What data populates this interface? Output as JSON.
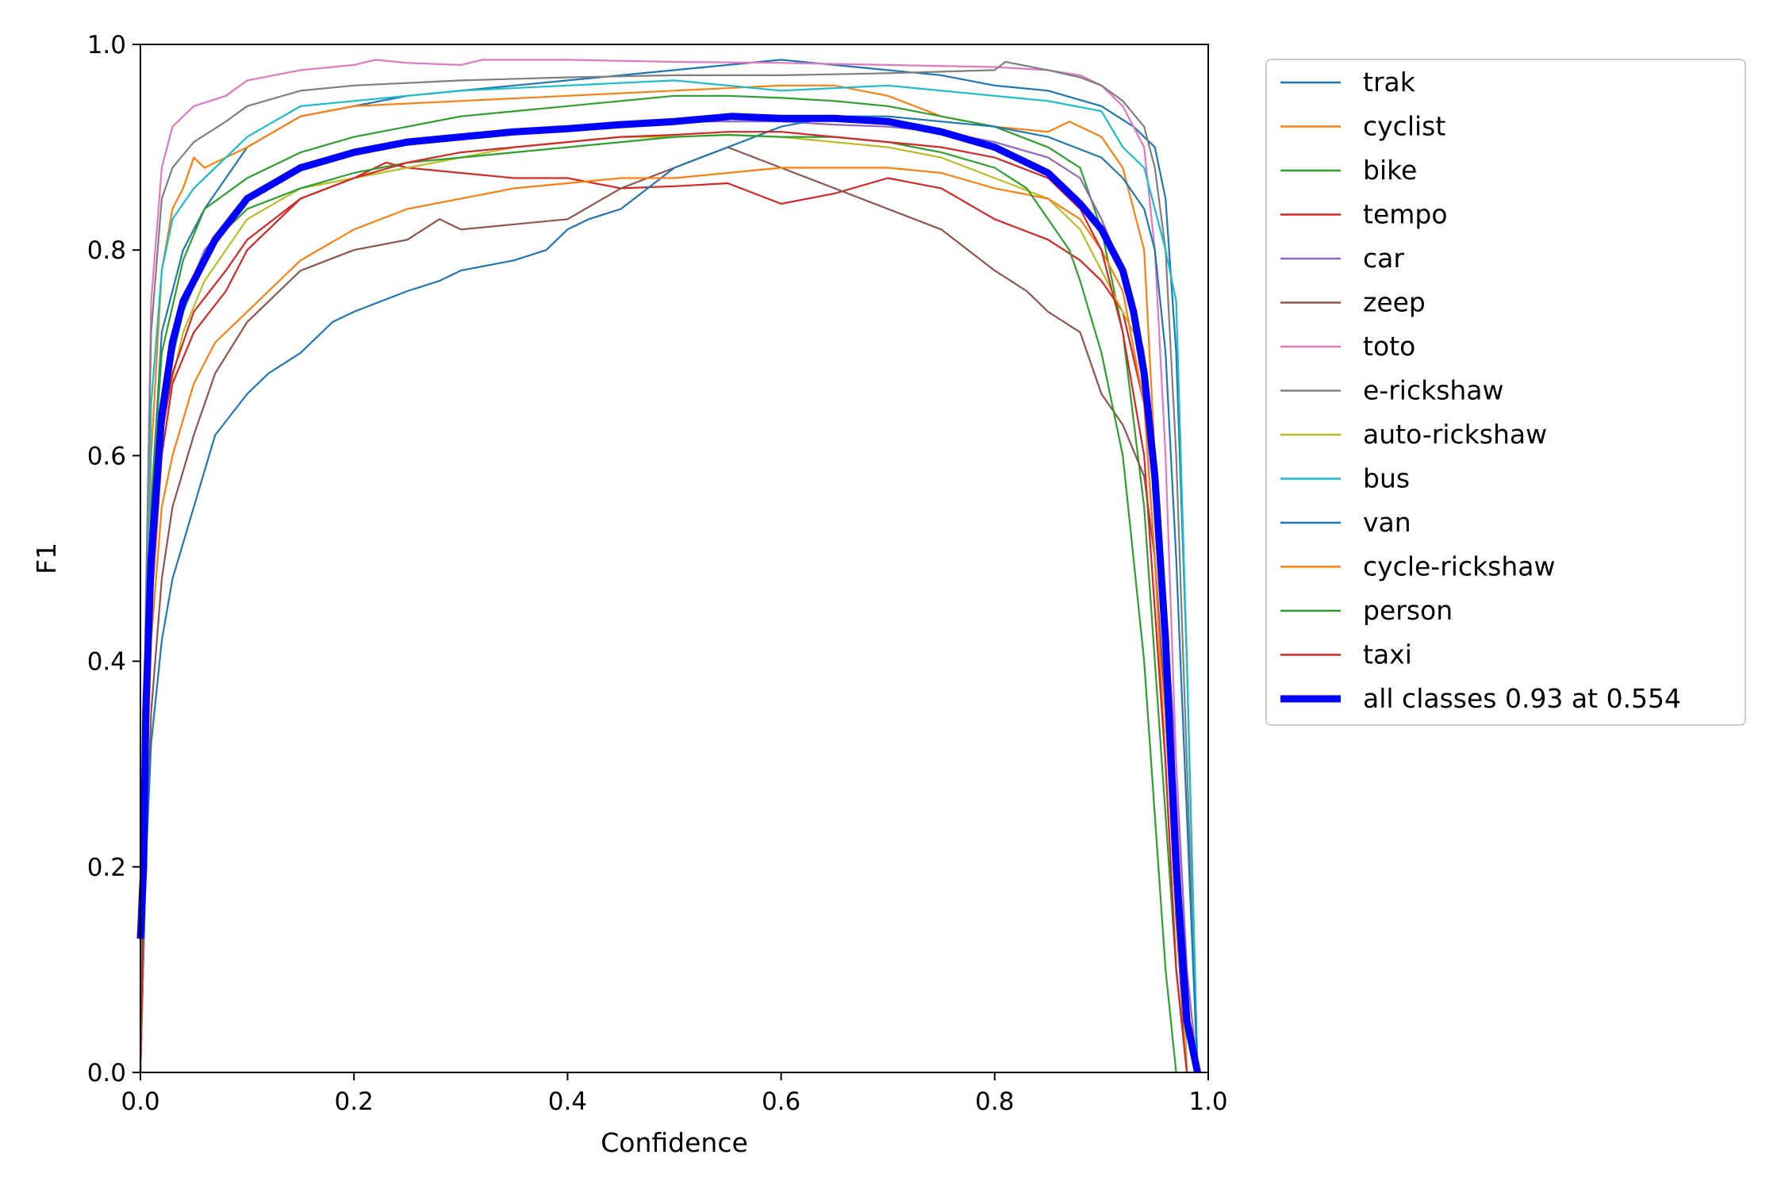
{
  "chart_data": {
    "type": "line",
    "title": "",
    "xlabel": "Confidence",
    "ylabel": "F1",
    "xlim": [
      0.0,
      1.0
    ],
    "ylim": [
      0.0,
      1.0
    ],
    "xticks": [
      "0.0",
      "0.2",
      "0.4",
      "0.6",
      "0.8",
      "1.0"
    ],
    "yticks": [
      "0.0",
      "0.2",
      "0.4",
      "0.6",
      "0.8",
      "1.0"
    ],
    "grid": false,
    "legend_position": "outside-right-top",
    "series": [
      {
        "name": "trak",
        "color": "#1f77b4",
        "width": "thin",
        "x": [
          0.0,
          0.005,
          0.01,
          0.02,
          0.04,
          0.06,
          0.08,
          0.1,
          0.15,
          0.2,
          0.25,
          0.3,
          0.35,
          0.4,
          0.45,
          0.5,
          0.55,
          0.6,
          0.65,
          0.7,
          0.75,
          0.8,
          0.85,
          0.9,
          0.93,
          0.95,
          0.96,
          0.97,
          0.98,
          0.99
        ],
        "y": [
          0.0,
          0.3,
          0.55,
          0.72,
          0.8,
          0.84,
          0.87,
          0.9,
          0.93,
          0.94,
          0.95,
          0.955,
          0.96,
          0.965,
          0.97,
          0.975,
          0.98,
          0.985,
          0.98,
          0.975,
          0.97,
          0.96,
          0.955,
          0.94,
          0.92,
          0.9,
          0.85,
          0.7,
          0.4,
          0.0
        ]
      },
      {
        "name": "cyclist",
        "color": "#ff7f0e",
        "width": "thin",
        "x": [
          0.0,
          0.005,
          0.01,
          0.02,
          0.03,
          0.04,
          0.05,
          0.06,
          0.1,
          0.15,
          0.2,
          0.3,
          0.4,
          0.5,
          0.6,
          0.65,
          0.7,
          0.75,
          0.8,
          0.85,
          0.87,
          0.9,
          0.92,
          0.94,
          0.95,
          0.96,
          0.97,
          0.98
        ],
        "y": [
          0.0,
          0.35,
          0.6,
          0.78,
          0.84,
          0.86,
          0.89,
          0.88,
          0.9,
          0.93,
          0.94,
          0.945,
          0.95,
          0.955,
          0.96,
          0.96,
          0.95,
          0.93,
          0.92,
          0.915,
          0.925,
          0.91,
          0.88,
          0.8,
          0.6,
          0.4,
          0.15,
          0.0
        ]
      },
      {
        "name": "bike",
        "color": "#2ca02c",
        "width": "thin",
        "x": [
          0.0,
          0.005,
          0.01,
          0.02,
          0.04,
          0.06,
          0.1,
          0.15,
          0.2,
          0.25,
          0.3,
          0.4,
          0.45,
          0.5,
          0.55,
          0.6,
          0.65,
          0.7,
          0.75,
          0.8,
          0.85,
          0.88,
          0.9,
          0.92,
          0.94,
          0.95,
          0.96,
          0.97,
          0.98
        ],
        "y": [
          0.0,
          0.3,
          0.55,
          0.7,
          0.79,
          0.84,
          0.87,
          0.895,
          0.91,
          0.92,
          0.93,
          0.94,
          0.945,
          0.95,
          0.95,
          0.948,
          0.945,
          0.94,
          0.93,
          0.92,
          0.9,
          0.88,
          0.82,
          0.72,
          0.55,
          0.4,
          0.25,
          0.1,
          0.0
        ]
      },
      {
        "name": "tempo",
        "color": "#d62728",
        "width": "thin",
        "x": [
          0.0,
          0.005,
          0.01,
          0.02,
          0.03,
          0.05,
          0.08,
          0.1,
          0.12,
          0.15,
          0.2,
          0.23,
          0.25,
          0.3,
          0.35,
          0.4,
          0.45,
          0.5,
          0.55,
          0.6,
          0.65,
          0.7,
          0.75,
          0.8,
          0.85,
          0.88,
          0.9,
          0.92,
          0.94,
          0.95,
          0.96,
          0.97,
          0.98
        ],
        "y": [
          0.0,
          0.25,
          0.45,
          0.6,
          0.67,
          0.72,
          0.76,
          0.8,
          0.82,
          0.85,
          0.87,
          0.885,
          0.88,
          0.875,
          0.87,
          0.87,
          0.86,
          0.862,
          0.865,
          0.845,
          0.855,
          0.87,
          0.86,
          0.83,
          0.81,
          0.79,
          0.77,
          0.74,
          0.65,
          0.5,
          0.35,
          0.15,
          0.0
        ]
      },
      {
        "name": "car",
        "color": "#9467bd",
        "width": "thin",
        "x": [
          0.0,
          0.005,
          0.01,
          0.02,
          0.04,
          0.06,
          0.1,
          0.15,
          0.2,
          0.25,
          0.3,
          0.35,
          0.4,
          0.45,
          0.5,
          0.55,
          0.6,
          0.65,
          0.7,
          0.75,
          0.8,
          0.85,
          0.88,
          0.9,
          0.92,
          0.94,
          0.95,
          0.96,
          0.97,
          0.98,
          0.99
        ],
        "y": [
          0.0,
          0.3,
          0.5,
          0.65,
          0.75,
          0.8,
          0.85,
          0.88,
          0.895,
          0.905,
          0.91,
          0.915,
          0.92,
          0.922,
          0.925,
          0.925,
          0.925,
          0.922,
          0.92,
          0.915,
          0.905,
          0.89,
          0.87,
          0.83,
          0.78,
          0.7,
          0.6,
          0.45,
          0.3,
          0.1,
          0.0
        ]
      },
      {
        "name": "zeep",
        "color": "#8c564b",
        "width": "thin",
        "x": [
          0.0,
          0.005,
          0.01,
          0.02,
          0.03,
          0.05,
          0.07,
          0.1,
          0.13,
          0.15,
          0.2,
          0.25,
          0.28,
          0.3,
          0.35,
          0.4,
          0.45,
          0.5,
          0.55,
          0.6,
          0.65,
          0.7,
          0.75,
          0.8,
          0.83,
          0.85,
          0.88,
          0.9,
          0.92,
          0.94,
          0.95,
          0.96,
          0.97,
          0.98
        ],
        "y": [
          0.0,
          0.2,
          0.35,
          0.48,
          0.55,
          0.62,
          0.68,
          0.73,
          0.76,
          0.78,
          0.8,
          0.81,
          0.83,
          0.82,
          0.825,
          0.83,
          0.86,
          0.88,
          0.9,
          0.88,
          0.86,
          0.84,
          0.82,
          0.78,
          0.76,
          0.74,
          0.72,
          0.66,
          0.63,
          0.58,
          0.5,
          0.35,
          0.15,
          0.0
        ]
      },
      {
        "name": "toto",
        "color": "#e377c2",
        "width": "thin",
        "x": [
          0.0,
          0.005,
          0.01,
          0.02,
          0.03,
          0.05,
          0.08,
          0.1,
          0.15,
          0.2,
          0.22,
          0.25,
          0.3,
          0.32,
          0.4,
          0.5,
          0.6,
          0.7,
          0.8,
          0.85,
          0.88,
          0.9,
          0.92,
          0.94,
          0.95,
          0.96,
          0.97,
          0.98
        ],
        "y": [
          0.0,
          0.45,
          0.75,
          0.88,
          0.92,
          0.94,
          0.95,
          0.965,
          0.975,
          0.98,
          0.985,
          0.982,
          0.98,
          0.985,
          0.985,
          0.983,
          0.982,
          0.98,
          0.978,
          0.975,
          0.97,
          0.96,
          0.94,
          0.9,
          0.8,
          0.6,
          0.3,
          0.0
        ]
      },
      {
        "name": "e-rickshaw",
        "color": "#7f7f7f",
        "width": "thin",
        "x": [
          0.0,
          0.005,
          0.01,
          0.02,
          0.03,
          0.05,
          0.08,
          0.1,
          0.15,
          0.2,
          0.3,
          0.4,
          0.5,
          0.6,
          0.7,
          0.8,
          0.81,
          0.85,
          0.88,
          0.9,
          0.92,
          0.94,
          0.95,
          0.96,
          0.97,
          0.98,
          0.99
        ],
        "y": [
          0.0,
          0.45,
          0.72,
          0.85,
          0.88,
          0.905,
          0.925,
          0.94,
          0.955,
          0.96,
          0.965,
          0.968,
          0.97,
          0.97,
          0.972,
          0.975,
          0.983,
          0.975,
          0.968,
          0.96,
          0.945,
          0.92,
          0.88,
          0.8,
          0.6,
          0.3,
          0.0
        ]
      },
      {
        "name": "auto-rickshaw",
        "color": "#bcbd22",
        "width": "thin",
        "x": [
          0.0,
          0.005,
          0.01,
          0.02,
          0.04,
          0.06,
          0.08,
          0.1,
          0.15,
          0.2,
          0.25,
          0.3,
          0.35,
          0.4,
          0.45,
          0.5,
          0.55,
          0.6,
          0.65,
          0.7,
          0.75,
          0.8,
          0.85,
          0.88,
          0.9,
          0.92,
          0.94,
          0.95,
          0.96,
          0.97,
          0.98
        ],
        "y": [
          0.0,
          0.3,
          0.5,
          0.63,
          0.72,
          0.77,
          0.8,
          0.83,
          0.86,
          0.87,
          0.88,
          0.89,
          0.9,
          0.905,
          0.91,
          0.91,
          0.912,
          0.91,
          0.905,
          0.9,
          0.89,
          0.87,
          0.85,
          0.82,
          0.78,
          0.74,
          0.7,
          0.6,
          0.4,
          0.2,
          0.0
        ]
      },
      {
        "name": "bus",
        "color": "#17becf",
        "width": "thin",
        "x": [
          0.0,
          0.005,
          0.01,
          0.02,
          0.03,
          0.05,
          0.08,
          0.1,
          0.15,
          0.2,
          0.3,
          0.4,
          0.5,
          0.55,
          0.6,
          0.7,
          0.75,
          0.8,
          0.85,
          0.9,
          0.92,
          0.94,
          0.95,
          0.96,
          0.97,
          0.98,
          0.99
        ],
        "y": [
          0.0,
          0.4,
          0.65,
          0.78,
          0.83,
          0.86,
          0.89,
          0.91,
          0.94,
          0.945,
          0.955,
          0.96,
          0.965,
          0.96,
          0.955,
          0.96,
          0.955,
          0.95,
          0.945,
          0.935,
          0.9,
          0.88,
          0.84,
          0.8,
          0.75,
          0.4,
          0.0
        ]
      },
      {
        "name": "van",
        "color": "#1f77b4",
        "width": "thin",
        "x": [
          0.0,
          0.005,
          0.01,
          0.02,
          0.03,
          0.05,
          0.07,
          0.1,
          0.12,
          0.15,
          0.18,
          0.2,
          0.25,
          0.28,
          0.3,
          0.35,
          0.38,
          0.4,
          0.42,
          0.45,
          0.5,
          0.55,
          0.6,
          0.65,
          0.7,
          0.75,
          0.8,
          0.85,
          0.9,
          0.92,
          0.94,
          0.95,
          0.96,
          0.97,
          0.98,
          0.99
        ],
        "y": [
          0.0,
          0.2,
          0.32,
          0.42,
          0.48,
          0.55,
          0.62,
          0.66,
          0.68,
          0.7,
          0.73,
          0.74,
          0.76,
          0.77,
          0.78,
          0.79,
          0.8,
          0.82,
          0.83,
          0.84,
          0.88,
          0.9,
          0.92,
          0.93,
          0.93,
          0.925,
          0.92,
          0.91,
          0.89,
          0.87,
          0.84,
          0.8,
          0.7,
          0.5,
          0.25,
          0.0
        ]
      },
      {
        "name": "cycle-rickshaw",
        "color": "#ff7f0e",
        "width": "thin",
        "x": [
          0.0,
          0.005,
          0.01,
          0.02,
          0.03,
          0.05,
          0.07,
          0.1,
          0.12,
          0.15,
          0.2,
          0.25,
          0.3,
          0.35,
          0.4,
          0.45,
          0.5,
          0.55,
          0.6,
          0.65,
          0.7,
          0.75,
          0.8,
          0.85,
          0.88,
          0.9,
          0.92,
          0.94,
          0.95,
          0.96,
          0.97,
          0.98
        ],
        "y": [
          0.0,
          0.25,
          0.42,
          0.55,
          0.6,
          0.67,
          0.71,
          0.74,
          0.76,
          0.79,
          0.82,
          0.84,
          0.85,
          0.86,
          0.865,
          0.87,
          0.87,
          0.875,
          0.88,
          0.88,
          0.88,
          0.875,
          0.86,
          0.85,
          0.83,
          0.8,
          0.76,
          0.65,
          0.5,
          0.3,
          0.1,
          0.0
        ]
      },
      {
        "name": "person",
        "color": "#2ca02c",
        "width": "thin",
        "x": [
          0.0,
          0.005,
          0.01,
          0.02,
          0.04,
          0.06,
          0.08,
          0.1,
          0.15,
          0.2,
          0.25,
          0.3,
          0.35,
          0.4,
          0.45,
          0.5,
          0.55,
          0.6,
          0.65,
          0.7,
          0.75,
          0.8,
          0.83,
          0.85,
          0.87,
          0.88,
          0.9,
          0.92,
          0.93,
          0.94,
          0.95,
          0.96,
          0.97
        ],
        "y": [
          0.0,
          0.3,
          0.5,
          0.65,
          0.74,
          0.79,
          0.82,
          0.84,
          0.86,
          0.875,
          0.885,
          0.89,
          0.895,
          0.9,
          0.905,
          0.91,
          0.912,
          0.91,
          0.91,
          0.905,
          0.895,
          0.88,
          0.86,
          0.83,
          0.8,
          0.77,
          0.7,
          0.6,
          0.5,
          0.4,
          0.25,
          0.1,
          0.0
        ]
      },
      {
        "name": "taxi",
        "color": "#d62728",
        "width": "thin",
        "x": [
          0.0,
          0.005,
          0.01,
          0.02,
          0.03,
          0.05,
          0.08,
          0.1,
          0.15,
          0.2,
          0.25,
          0.3,
          0.35,
          0.4,
          0.45,
          0.5,
          0.55,
          0.6,
          0.65,
          0.7,
          0.75,
          0.8,
          0.85,
          0.88,
          0.9,
          0.92,
          0.94,
          0.95,
          0.96,
          0.97,
          0.98
        ],
        "y": [
          0.0,
          0.3,
          0.5,
          0.62,
          0.68,
          0.74,
          0.78,
          0.81,
          0.85,
          0.87,
          0.885,
          0.895,
          0.9,
          0.905,
          0.91,
          0.912,
          0.915,
          0.915,
          0.91,
          0.905,
          0.9,
          0.89,
          0.87,
          0.84,
          0.8,
          0.72,
          0.6,
          0.45,
          0.3,
          0.1,
          0.0
        ]
      },
      {
        "name": "all classes 0.93 at 0.554",
        "color": "#0000ff",
        "width": "thick",
        "x": [
          0.0,
          0.003,
          0.005,
          0.01,
          0.02,
          0.03,
          0.04,
          0.05,
          0.07,
          0.1,
          0.15,
          0.2,
          0.25,
          0.3,
          0.35,
          0.4,
          0.45,
          0.5,
          0.554,
          0.6,
          0.65,
          0.7,
          0.75,
          0.8,
          0.85,
          0.88,
          0.9,
          0.92,
          0.93,
          0.94,
          0.95,
          0.96,
          0.97,
          0.98,
          0.99
        ],
        "y": [
          0.13,
          0.2,
          0.35,
          0.5,
          0.64,
          0.71,
          0.75,
          0.77,
          0.81,
          0.85,
          0.88,
          0.895,
          0.905,
          0.91,
          0.915,
          0.918,
          0.922,
          0.925,
          0.93,
          0.928,
          0.928,
          0.925,
          0.915,
          0.9,
          0.875,
          0.845,
          0.82,
          0.78,
          0.74,
          0.68,
          0.58,
          0.42,
          0.2,
          0.05,
          0.0
        ]
      }
    ]
  }
}
